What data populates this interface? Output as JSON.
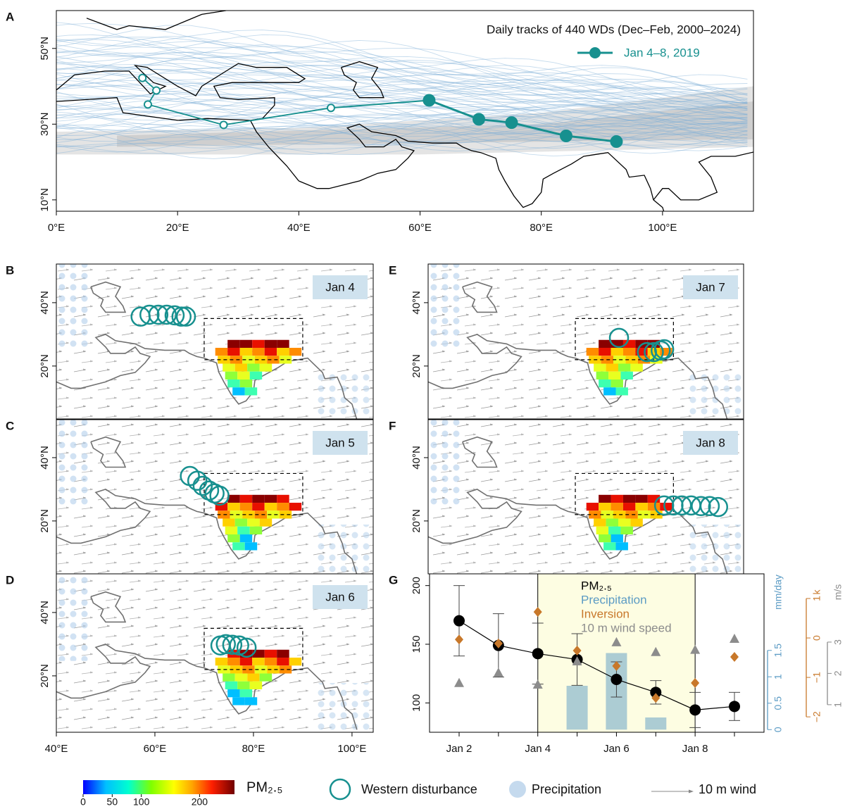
{
  "chart_data": [
    {
      "type": "line",
      "panel": "A",
      "annotation": "Daily tracks of 440 WDs (Dec–Feb, 2000–2024)",
      "xlim": [
        0,
        115
      ],
      "ylim": [
        7,
        60
      ],
      "xticks": [
        {
          "value": 0,
          "label": "0°E"
        },
        {
          "value": 20,
          "label": "20°E"
        },
        {
          "value": 40,
          "label": "40°E"
        },
        {
          "value": 60,
          "label": "60°E"
        },
        {
          "value": 80,
          "label": "80°E"
        },
        {
          "value": 100,
          "label": "100°E"
        }
      ],
      "yticks": [
        {
          "value": 10,
          "label": "10°N"
        },
        {
          "value": 30,
          "label": "30°N"
        },
        {
          "value": 50,
          "label": "50°N"
        }
      ],
      "series": [
        {
          "color": "#17908f",
          "marker": "open",
          "x": [
            14.2,
            16.5,
            15.1,
            27.6,
            45.3
          ],
          "values": [
            42.2,
            38.9,
            35.2,
            29.8,
            34.3
          ]
        },
        {
          "name": "Jan 4–8, 2019",
          "color": "#17908f",
          "marker": "filled",
          "x": [
            61.5,
            69.7,
            75.1,
            84.1,
            92.4
          ],
          "values": [
            36.3,
            31.3,
            30.4,
            26.9,
            25.4
          ]
        }
      ]
    },
    {
      "type": "map",
      "panel": "B",
      "date": "Jan 4",
      "xlim": [
        40,
        104.3
      ],
      "ylim": [
        3.3,
        52.2
      ],
      "color": "#17908f",
      "yticks": [
        {
          "value": 20,
          "label": "20°N"
        },
        {
          "value": 40,
          "label": "40°N"
        }
      ],
      "x": [
        57.1,
        58.9,
        60.7,
        62.4,
        64.0,
        65.4,
        66.3
      ],
      "values": [
        35.6,
        36.2,
        36.2,
        36.2,
        36.0,
        35.6,
        35.6
      ]
    },
    {
      "type": "map",
      "panel": "C",
      "date": "Jan 5",
      "xlim": [
        40,
        104.3
      ],
      "ylim": [
        3.3,
        52.0
      ],
      "color": "#17908f",
      "yticks": [
        {
          "value": 20,
          "label": "20°N"
        },
        {
          "value": 40,
          "label": "40°N"
        }
      ],
      "x": [
        67.1,
        68.6,
        69.7,
        71.0,
        72.1,
        73.1
      ],
      "values": [
        34.2,
        32.7,
        31.1,
        29.6,
        28.7,
        28.0
      ]
    },
    {
      "type": "map",
      "panel": "D",
      "date": "Jan 6",
      "xlim": [
        40,
        104.3
      ],
      "ylim": [
        2.2,
        52.2
      ],
      "color": "#17908f",
      "xticks": [
        {
          "value": 40,
          "label": "40°E"
        },
        {
          "value": 60,
          "label": "60°E"
        },
        {
          "value": 80,
          "label": "80°E"
        },
        {
          "value": 100,
          "label": "100°E"
        }
      ],
      "yticks": [
        {
          "value": 20,
          "label": "20°N"
        },
        {
          "value": 40,
          "label": "40°N"
        }
      ],
      "x": [
        73.3,
        74.4,
        75.7,
        77.1,
        78.6
      ],
      "values": [
        29.6,
        30.0,
        29.8,
        29.6,
        28.9
      ]
    },
    {
      "type": "map",
      "panel": "E",
      "date": "Jan 7",
      "xlim": [
        40,
        104.3
      ],
      "ylim": [
        3.3,
        52.2
      ],
      "color": "#17908f",
      "yticks": [
        {
          "value": 20,
          "label": "20°N"
        },
        {
          "value": 40,
          "label": "40°N"
        }
      ],
      "x": [
        78.9,
        84.6,
        86.0,
        87.4,
        88.1
      ],
      "values": [
        28.9,
        24.4,
        24.4,
        24.9,
        25.3
      ]
    },
    {
      "type": "map",
      "panel": "F",
      "date": "Jan 8",
      "xlim": [
        40,
        104.3
      ],
      "ylim": [
        3.3,
        52.0
      ],
      "color": "#17908f",
      "yticks": [
        {
          "value": 20,
          "label": "20°N"
        },
        {
          "value": 40,
          "label": "40°N"
        }
      ],
      "x": [
        88.1,
        90.0,
        91.7,
        93.6,
        95.6,
        97.4,
        99.1
      ],
      "values": [
        24.9,
        24.9,
        24.9,
        24.9,
        24.7,
        24.7,
        24.4
      ]
    },
    {
      "type": "combo",
      "panel": "G",
      "categories": [
        "Jan 2",
        null,
        "Jan 4",
        null,
        "Jan 6",
        null,
        "Jan 8",
        null
      ],
      "highlight": [
        "Jan 4",
        "Jan 8"
      ],
      "ylim": [
        75,
        210
      ],
      "yticks": [
        100,
        150,
        200
      ],
      "y2lim": [
        -0.05,
        2.95
      ],
      "y2ticks": [
        0,
        0.5,
        1,
        1.5
      ],
      "y2label": "mm/day",
      "y3lim": [
        -2.39,
        1.625
      ],
      "y3ticks": [
        1,
        0,
        {
          "value": -1,
          "label": "−1"
        },
        {
          "value": -2,
          "label": "−2"
        }
      ],
      "y3label": "k",
      "y4lim": [
        0.12,
        5.18
      ],
      "y4ticks": [
        1,
        2,
        3
      ],
      "y4label": "m/s",
      "series": [
        {
          "name": "PM₂.₅",
          "color": "#000000",
          "marker": "circle",
          "axis": "y",
          "values": [
            170,
            149,
            142,
            137,
            120,
            109,
            94,
            97
          ],
          "error": [
            30,
            27,
            26,
            22,
            15,
            10,
            15,
            12
          ]
        },
        {
          "name": "Precipitation",
          "color": "#5b9bc4",
          "marker": "bar",
          "axis": "y2",
          "values": [
            0,
            0,
            0,
            0.83,
            1.45,
            0.23,
            0,
            0
          ]
        },
        {
          "name": "Inversion",
          "color": "#c8782a",
          "marker": "diamond",
          "axis": "y3",
          "values": [
            -0.04,
            -0.14,
            0.66,
            -0.32,
            -0.71,
            -1.52,
            -1.14,
            -0.48
          ]
        },
        {
          "name": "10 m wind speed",
          "color": "#8c8c8c",
          "marker": "triangle",
          "axis": "y4",
          "values": [
            1.7,
            2.03,
            1.65,
            2.39,
            3.0,
            2.69,
            2.76,
            3.11
          ]
        }
      ]
    }
  ],
  "legend": {
    "colorbar": {
      "title": "PM₂.₅",
      "lim": [
        0,
        260
      ],
      "ticks": [
        0,
        50,
        100,
        200
      ]
    },
    "items": [
      "Western disturbance",
      "Precipitation",
      "10 m wind"
    ]
  }
}
